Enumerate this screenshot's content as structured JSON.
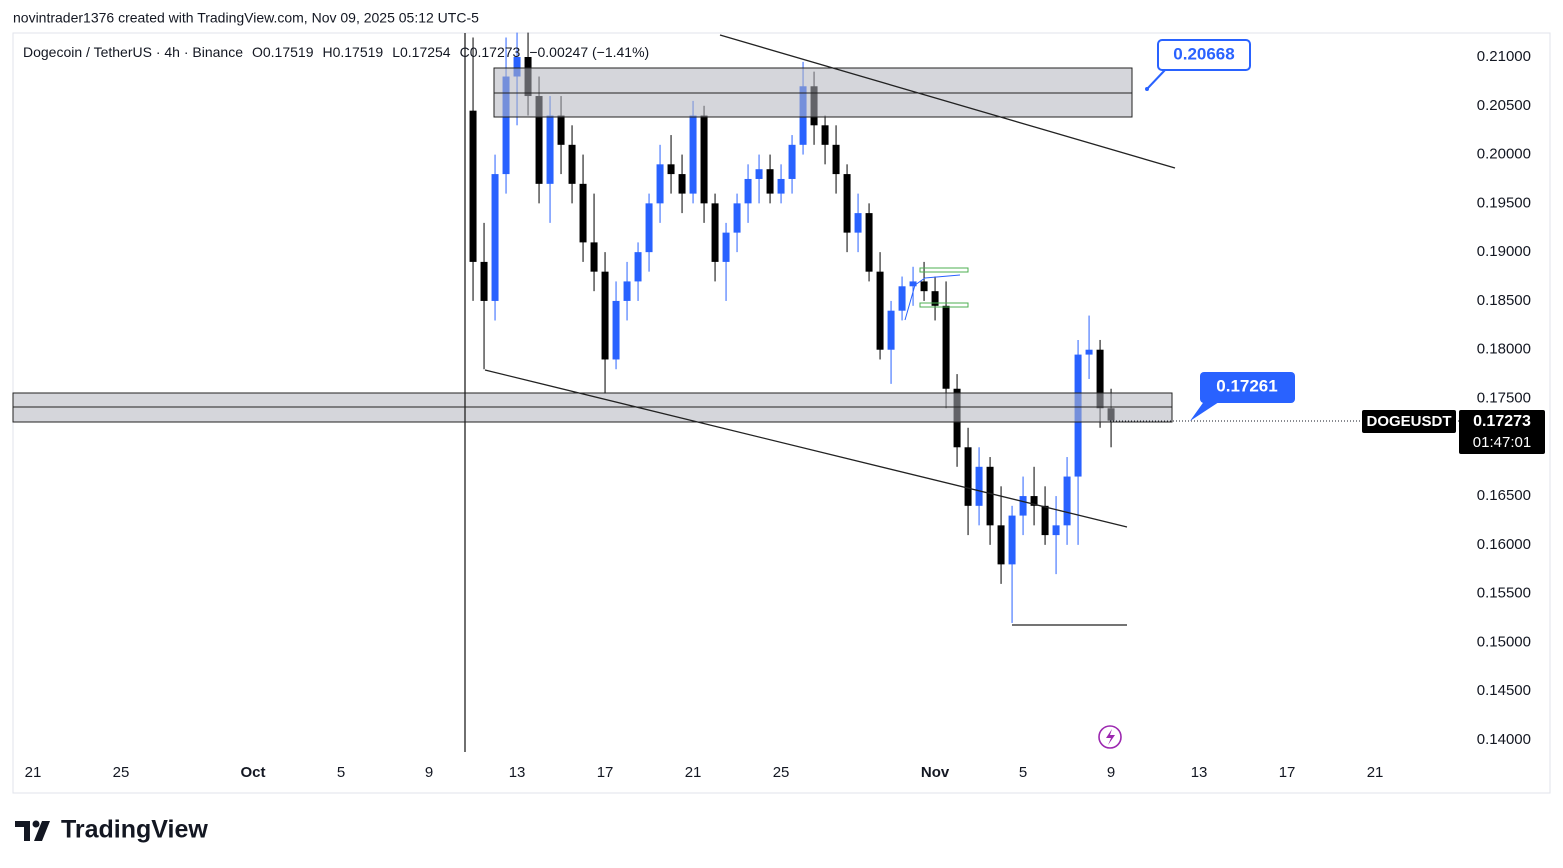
{
  "header": {
    "creator": "novintrader1376 created with TradingView.com, Nov 09, 2025 05:12 UTC-5",
    "brand": "TradingView"
  },
  "chart_data": {
    "type": "candlestick",
    "title": "Dogecoin / TetherUS · 4h · Binance",
    "legend": [
      "O0.17519",
      "H0.17519",
      "L0.17254",
      "C0.17273",
      "−0.00247 (−1.41%)"
    ],
    "x": [
      20,
      20.5,
      21,
      21.5,
      22,
      22.5,
      23,
      23.5,
      24,
      24.5,
      25,
      25.5,
      26,
      26.5,
      27,
      27.5,
      28,
      28.5,
      29,
      29.5,
      30,
      30.5,
      31,
      31.5,
      32,
      32.5,
      33,
      33.5,
      34,
      34.5,
      35,
      35.5,
      36,
      36.5,
      37,
      37.5,
      38,
      38.5,
      39,
      39.5,
      40,
      40.5,
      41,
      41.5,
      42,
      42.5,
      43,
      43.5,
      44,
      44.5,
      45,
      45.5,
      46,
      46.5,
      47,
      47.5,
      48,
      48.5,
      49
    ],
    "open": [
      0.2045,
      0.189,
      0.185,
      0.198,
      0.208,
      0.21,
      0.206,
      0.197,
      0.204,
      0.201,
      0.197,
      0.191,
      0.188,
      0.179,
      0.185,
      0.187,
      0.19,
      0.195,
      0.199,
      0.198,
      0.196,
      0.204,
      0.195,
      0.189,
      0.192,
      0.195,
      0.1975,
      0.1985,
      0.196,
      0.1975,
      0.201,
      0.207,
      0.203,
      0.201,
      0.198,
      0.192,
      0.194,
      0.188,
      0.18,
      0.184,
      0.1865,
      0.187,
      0.186,
      0.1845,
      0.176,
      0.17,
      0.164,
      0.168,
      0.162,
      0.158,
      0.163,
      0.165,
      0.164,
      0.161,
      0.162,
      0.167,
      0.1795,
      0.18,
      0.174
    ],
    "high": [
      0.212,
      0.193,
      0.2,
      0.212,
      0.2125,
      0.2125,
      0.208,
      0.206,
      0.206,
      0.203,
      0.2,
      0.196,
      0.19,
      0.187,
      0.189,
      0.191,
      0.196,
      0.201,
      0.202,
      0.2,
      0.2055,
      0.205,
      0.196,
      0.193,
      0.196,
      0.199,
      0.2,
      0.2,
      0.199,
      0.202,
      0.2095,
      0.2085,
      0.204,
      0.203,
      0.199,
      0.196,
      0.195,
      0.19,
      0.185,
      0.1875,
      0.1885,
      0.189,
      0.1875,
      0.187,
      0.1775,
      0.172,
      0.17,
      0.169,
      0.166,
      0.164,
      0.167,
      0.168,
      0.166,
      0.165,
      0.169,
      0.181,
      0.1835,
      0.181,
      0.176
    ],
    "low": [
      0.185,
      0.178,
      0.183,
      0.196,
      0.203,
      0.204,
      0.195,
      0.193,
      0.198,
      0.195,
      0.189,
      0.186,
      0.1755,
      0.178,
      0.183,
      0.185,
      0.188,
      0.193,
      0.196,
      0.194,
      0.195,
      0.193,
      0.187,
      0.185,
      0.19,
      0.193,
      0.195,
      0.195,
      0.195,
      0.196,
      0.2,
      0.201,
      0.199,
      0.196,
      0.19,
      0.19,
      0.187,
      0.179,
      0.1765,
      0.183,
      0.1845,
      0.185,
      0.183,
      0.174,
      0.168,
      0.161,
      0.162,
      0.16,
      0.156,
      0.152,
      0.161,
      0.162,
      0.16,
      0.157,
      0.16,
      0.16,
      0.177,
      0.172,
      0.17
    ],
    "close": [
      0.189,
      0.185,
      0.198,
      0.208,
      0.21,
      0.206,
      0.197,
      0.204,
      0.201,
      0.197,
      0.191,
      0.188,
      0.179,
      0.185,
      0.187,
      0.19,
      0.195,
      0.199,
      0.198,
      0.196,
      0.204,
      0.195,
      0.189,
      0.192,
      0.195,
      0.1975,
      0.1985,
      0.196,
      0.1975,
      0.201,
      0.207,
      0.203,
      0.201,
      0.198,
      0.192,
      0.194,
      0.188,
      0.18,
      0.184,
      0.1865,
      0.187,
      0.186,
      0.1845,
      0.176,
      0.17,
      0.164,
      0.168,
      0.162,
      0.158,
      0.163,
      0.165,
      0.164,
      0.161,
      0.162,
      0.167,
      0.1795,
      0.18,
      0.174,
      0.17273
    ],
    "up_color": "#2962ff",
    "down_color": "#000000",
    "xlim": [
      -0.91,
      64.86
    ],
    "xticks": [
      {
        "value": 0,
        "label": "21"
      },
      {
        "value": 4,
        "label": "25"
      },
      {
        "value": 10,
        "label": "Oct"
      },
      {
        "value": 14,
        "label": "5"
      },
      {
        "value": 18,
        "label": "9"
      },
      {
        "value": 22,
        "label": "13"
      },
      {
        "value": 26,
        "label": "17"
      },
      {
        "value": 30,
        "label": "21"
      },
      {
        "value": 34,
        "label": "25"
      },
      {
        "value": 41,
        "label": "Nov"
      },
      {
        "value": 45,
        "label": "5"
      },
      {
        "value": 49,
        "label": "9"
      },
      {
        "value": 53,
        "label": "13"
      },
      {
        "value": 57,
        "label": "17"
      },
      {
        "value": 61,
        "label": "21"
      }
    ],
    "ylim": [
      0.13795,
      0.21246
    ],
    "yticks": [
      {
        "value": 0.21,
        "label": "0.21000"
      },
      {
        "value": 0.205,
        "label": "0.20500"
      },
      {
        "value": 0.2,
        "label": "0.20000"
      },
      {
        "value": 0.195,
        "label": "0.19500"
      },
      {
        "value": 0.19,
        "label": "0.19000"
      },
      {
        "value": 0.185,
        "label": "0.18500"
      },
      {
        "value": 0.18,
        "label": "0.18000"
      },
      {
        "value": 0.175,
        "label": "0.17500"
      },
      {
        "value": 0.165,
        "label": "0.16500"
      },
      {
        "value": 0.16,
        "label": "0.16000"
      },
      {
        "value": 0.155,
        "label": "0.15500"
      },
      {
        "value": 0.15,
        "label": "0.15000"
      },
      {
        "value": 0.145,
        "label": "0.14500"
      },
      {
        "value": 0.14,
        "label": "0.14000"
      }
    ],
    "annotations": [
      "0.20668",
      "0.17261"
    ],
    "price_label": {
      "symbol": "DOGEUSDT",
      "price": "0.17273",
      "countdown": "01:47:01"
    }
  }
}
